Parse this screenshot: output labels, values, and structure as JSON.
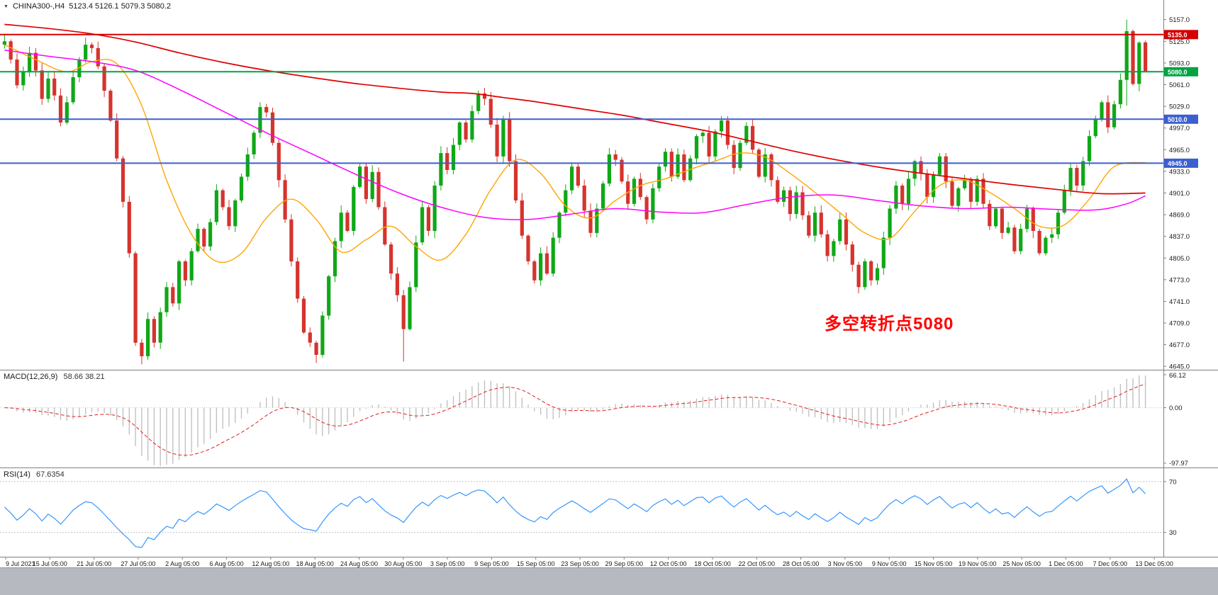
{
  "header": {
    "dropdown_icon": "▼",
    "symbol_timeframe": "CHINA300-,H4",
    "ohlc": "5123.4 5126.1 5079.3 5080.2"
  },
  "annotation": {
    "text": "多空转折点5080",
    "color": "#FF0000"
  },
  "colors": {
    "bull": "#0FA817",
    "bear": "#D6332D",
    "ma_red": "#E00000",
    "ma_magenta": "#FF00FF",
    "ma_orange": "#FFA500",
    "macd_hist": "#BDBDBD",
    "macd_signal": "#E02020",
    "rsi_line": "#3797FF",
    "axis_text": "#1A1A1A",
    "pane_border": "#808080",
    "badge_text": "#FFFFFF"
  },
  "axis": {
    "price_labels": [
      5157,
      5125,
      5093,
      5061,
      5029,
      4997,
      4965,
      4933,
      4901,
      4869,
      4837,
      4805,
      4773,
      4741,
      4709,
      4677,
      4645
    ],
    "badges": [
      {
        "price": 5135,
        "label": "5135.0",
        "color": "#D40000"
      },
      {
        "price": 5080,
        "label": "5080.0",
        "color": "#00A443"
      },
      {
        "price": 5010,
        "label": "5010.0",
        "color": "#3C5FD0"
      },
      {
        "price": 4945,
        "label": "4945.0",
        "color": "#3C5FD0"
      }
    ],
    "time_labels": [
      "9 Jul 2021",
      "15 Jul 05:00",
      "21 Jul 05:00",
      "27 Jul 05:00",
      "2 Aug 05:00",
      "6 Aug 05:00",
      "12 Aug 05:00",
      "18 Aug 05:00",
      "24 Aug 05:00",
      "30 Aug 05:00",
      "3 Sep 05:00",
      "9 Sep 05:00",
      "15 Sep 05:00",
      "23 Sep 05:00",
      "29 Sep 05:00",
      "12 Oct 05:00",
      "18 Oct 05:00",
      "22 Oct 05:00",
      "28 Oct 05:00",
      "3 Nov 05:00",
      "9 Nov 05:00",
      "15 Nov 05:00",
      "19 Nov 05:00",
      "25 Nov 05:00",
      "1 Dec 05:00",
      "7 Dec 05:00",
      "13 Dec 05:00"
    ]
  },
  "hlines": [
    {
      "price": 5135,
      "color": "#D40000",
      "width": 2
    },
    {
      "price": 5080,
      "color": "#00A443",
      "width": 2
    },
    {
      "price": 5010,
      "color": "#3C5FD0",
      "width": 2
    },
    {
      "price": 4945,
      "color": "#3C5FD0",
      "width": 2
    }
  ],
  "chart_data": {
    "type": "candlestick",
    "symbol": "CHINA300-",
    "timeframe": "H4",
    "last_candle": {
      "open": 5123.4,
      "high": 5126.1,
      "low": 5079.3,
      "close": 5080.2
    },
    "price_axis_range": [
      4640,
      5186
    ],
    "first_open": 5120,
    "closes": [
      5125,
      5098,
      5060,
      5080,
      5108,
      5082,
      5040,
      5070,
      5045,
      5005,
      5035,
      5072,
      5098,
      5120,
      5115,
      5088,
      5052,
      5008,
      4952,
      4888,
      4812,
      4680,
      4660,
      4715,
      4680,
      4725,
      4762,
      4738,
      4800,
      4772,
      4815,
      4848,
      4822,
      4858,
      4905,
      4880,
      4852,
      4890,
      4925,
      4958,
      4990,
      5028,
      5020,
      4975,
      4920,
      4862,
      4800,
      4745,
      4695,
      4680,
      4662,
      4720,
      4778,
      4830,
      4872,
      4845,
      4910,
      4940,
      4892,
      4932,
      4880,
      4825,
      4782,
      4750,
      4700,
      4762,
      4828,
      4880,
      4845,
      4912,
      4960,
      4935,
      4972,
      5005,
      4980,
      5022,
      5048,
      5040,
      5002,
      4955,
      5010,
      4948,
      4890,
      4838,
      4800,
      4772,
      4812,
      4782,
      4835,
      4872,
      4905,
      4940,
      4912,
      4875,
      4842,
      4878,
      4915,
      4958,
      4950,
      4918,
      4885,
      4922,
      4895,
      4862,
      4908,
      4940,
      4962,
      4925,
      4958,
      4920,
      4952,
      4985,
      4990,
      4955,
      4992,
      5008,
      4972,
      4938,
      4975,
      5000,
      4965,
      4925,
      4958,
      4920,
      4888,
      4905,
      4870,
      4902,
      4868,
      4838,
      4872,
      4840,
      4808,
      4830,
      4862,
      4825,
      4795,
      4762,
      4800,
      4772,
      4790,
      4835,
      4878,
      4912,
      4885,
      4922,
      4948,
      4930,
      4895,
      4928,
      4955,
      4918,
      4882,
      4908,
      4920,
      4888,
      4922,
      4885,
      4852,
      4878,
      4842,
      4850,
      4815,
      4848,
      4878,
      4845,
      4812,
      4835,
      4840,
      4872,
      4905,
      4938,
      4912,
      4948,
      4985,
      5010,
      5035,
      4998,
      5032,
      5068,
      5140,
      5062,
      5123,
      5080.2
    ],
    "feature_candles": {
      "22": {
        "low": 4648
      },
      "50": {
        "low": 4650
      },
      "64": {
        "low": 4652
      },
      "180": {
        "high": 5157,
        "low": 5030
      },
      "183": {
        "open": 5123.4,
        "high": 5126.1,
        "low": 5079.3,
        "close": 5080.2
      }
    },
    "moving_averages": [
      {
        "name": "ma-short-orange",
        "color_key": "ma_orange",
        "width": 1.4,
        "points": [
          [
            0,
            5120
          ],
          [
            5,
            5098
          ],
          [
            10,
            5080
          ],
          [
            14,
            5095
          ],
          [
            18,
            5092
          ],
          [
            22,
            5030
          ],
          [
            26,
            4920
          ],
          [
            30,
            4840
          ],
          [
            34,
            4800
          ],
          [
            38,
            4812
          ],
          [
            42,
            4864
          ],
          [
            46,
            4892
          ],
          [
            50,
            4862
          ],
          [
            54,
            4814
          ],
          [
            58,
            4832
          ],
          [
            62,
            4852
          ],
          [
            66,
            4822
          ],
          [
            70,
            4802
          ],
          [
            74,
            4840
          ],
          [
            78,
            4906
          ],
          [
            82,
            4950
          ],
          [
            86,
            4930
          ],
          [
            90,
            4882
          ],
          [
            94,
            4864
          ],
          [
            98,
            4890
          ],
          [
            102,
            4912
          ],
          [
            106,
            4922
          ],
          [
            110,
            4936
          ],
          [
            114,
            4948
          ],
          [
            118,
            4960
          ],
          [
            122,
            4954
          ],
          [
            126,
            4930
          ],
          [
            130,
            4902
          ],
          [
            134,
            4872
          ],
          [
            138,
            4842
          ],
          [
            142,
            4834
          ],
          [
            146,
            4874
          ],
          [
            150,
            4912
          ],
          [
            154,
            4920
          ],
          [
            158,
            4902
          ],
          [
            162,
            4878
          ],
          [
            166,
            4852
          ],
          [
            170,
            4854
          ],
          [
            174,
            4892
          ],
          [
            178,
            4940
          ],
          [
            183,
            4946
          ]
        ]
      },
      {
        "name": "ma-mid-magenta",
        "color_key": "ma_magenta",
        "width": 1.5,
        "points": [
          [
            0,
            5112
          ],
          [
            7,
            5103
          ],
          [
            14,
            5095
          ],
          [
            21,
            5082
          ],
          [
            28,
            5054
          ],
          [
            35,
            5022
          ],
          [
            42,
            4990
          ],
          [
            49,
            4960
          ],
          [
            56,
            4930
          ],
          [
            63,
            4902
          ],
          [
            70,
            4880
          ],
          [
            77,
            4865
          ],
          [
            84,
            4862
          ],
          [
            91,
            4870
          ],
          [
            98,
            4878
          ],
          [
            105,
            4873
          ],
          [
            112,
            4872
          ],
          [
            119,
            4884
          ],
          [
            126,
            4895
          ],
          [
            133,
            4898
          ],
          [
            140,
            4890
          ],
          [
            147,
            4882
          ],
          [
            154,
            4878
          ],
          [
            161,
            4880
          ],
          [
            168,
            4877
          ],
          [
            175,
            4876
          ],
          [
            180,
            4885
          ],
          [
            183,
            4897
          ]
        ]
      },
      {
        "name": "ma-long-red",
        "color_key": "ma_red",
        "width": 1.7,
        "points": [
          [
            0,
            5150
          ],
          [
            7,
            5144
          ],
          [
            14,
            5136
          ],
          [
            21,
            5124
          ],
          [
            28,
            5108
          ],
          [
            35,
            5094
          ],
          [
            42,
            5082
          ],
          [
            49,
            5072
          ],
          [
            56,
            5063
          ],
          [
            63,
            5056
          ],
          [
            70,
            5050
          ],
          [
            75,
            5048
          ],
          [
            80,
            5042
          ],
          [
            85,
            5036
          ],
          [
            92,
            5026
          ],
          [
            99,
            5016
          ],
          [
            106,
            5004
          ],
          [
            113,
            4992
          ],
          [
            120,
            4977
          ],
          [
            127,
            4962
          ],
          [
            134,
            4949
          ],
          [
            141,
            4938
          ],
          [
            148,
            4929
          ],
          [
            155,
            4921
          ],
          [
            162,
            4913
          ],
          [
            169,
            4906
          ],
          [
            176,
            4900
          ],
          [
            183,
            4901
          ]
        ]
      }
    ],
    "macd": {
      "label": "MACD(12,26,9)",
      "values": "58.66 38.21",
      "fast": 12,
      "slow": 26,
      "signal_period": 9,
      "axis_labels": [
        "66.12",
        "0.00",
        "-97.97"
      ]
    },
    "rsi": {
      "label": "RSI(14)",
      "value": "67.6354",
      "period": 14,
      "levels": [
        70,
        30
      ],
      "axis_labels": [
        "70",
        "30"
      ]
    }
  }
}
